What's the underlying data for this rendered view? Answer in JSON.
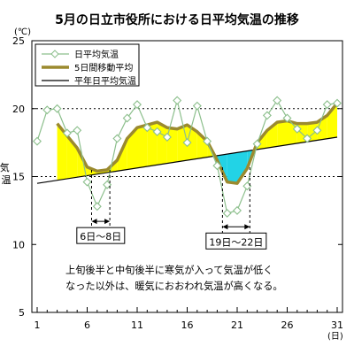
{
  "chart_data": {
    "type": "line",
    "title": "5月の日立市役所における日平均気温の推移",
    "ylabel": "気温",
    "yunit": "(℃)",
    "xunit": "(日)",
    "ylim": [
      5,
      25
    ],
    "yticks": [
      5,
      10,
      15,
      20,
      25
    ],
    "xlim": [
      1,
      31
    ],
    "xticks": [
      1,
      6,
      11,
      16,
      21,
      26,
      31
    ],
    "grid": "dotted y at 15 and 20",
    "legend": "top-left",
    "series": [
      {
        "name": "日平均気温",
        "style": "thin line with hollow diamond markers",
        "color": "#8cbf8c",
        "x": [
          1,
          2,
          3,
          4,
          5,
          6,
          7,
          8,
          9,
          10,
          11,
          12,
          13,
          14,
          15,
          16,
          17,
          18,
          19,
          20,
          21,
          22,
          23,
          24,
          25,
          26,
          27,
          28,
          29,
          30,
          31
        ],
        "values": [
          17.6,
          19.9,
          20.0,
          18.2,
          18.4,
          14.6,
          12.8,
          14.4,
          17.8,
          19.3,
          20.3,
          18.6,
          18.3,
          17.9,
          20.6,
          17.5,
          20.2,
          17.6,
          15.8,
          12.3,
          12.5,
          14.3,
          17.4,
          19.5,
          20.6,
          19.3,
          18.5,
          17.8,
          18.4,
          20.3,
          20.4
        ]
      },
      {
        "name": "5日間移動平均",
        "style": "thick line",
        "color": "#9b8a2e",
        "x": [
          3,
          4,
          5,
          6,
          7,
          8,
          9,
          10,
          11,
          12,
          13,
          14,
          15,
          16,
          17,
          18,
          19,
          20,
          21,
          22,
          23,
          24,
          25,
          26,
          27,
          28,
          29,
          30,
          31
        ],
        "values": [
          18.9,
          18.0,
          17.1,
          15.7,
          15.4,
          15.5,
          16.2,
          17.8,
          18.6,
          18.8,
          19.0,
          18.6,
          18.5,
          18.8,
          18.3,
          17.6,
          16.2,
          14.6,
          14.5,
          15.6,
          17.5,
          18.4,
          19.0,
          19.1,
          18.9,
          18.9,
          19.0,
          19.5,
          20.4
        ]
      },
      {
        "name": "平年日平均気温",
        "style": "thin straight line",
        "color": "#000000",
        "x": [
          1,
          31
        ],
        "values": [
          14.5,
          17.9
        ]
      }
    ],
    "fills": [
      {
        "meaning": "above normal",
        "color": "#ffff00"
      },
      {
        "meaning": "below normal",
        "color": "#22d3e6"
      }
    ],
    "annotations": [
      {
        "text": "6日～8日",
        "x_from": 6,
        "x_to": 8,
        "y": 11.7
      },
      {
        "text": "19日～22日",
        "x_from": 19,
        "x_to": 22,
        "y": 11.3
      },
      {
        "text": "上旬後半と中旬後半に寒気が入って気温が低く",
        "kind": "note-line1"
      },
      {
        "text": "なった以外は、暖気におおわれ気温が高くなる。",
        "kind": "note-line2"
      }
    ]
  }
}
